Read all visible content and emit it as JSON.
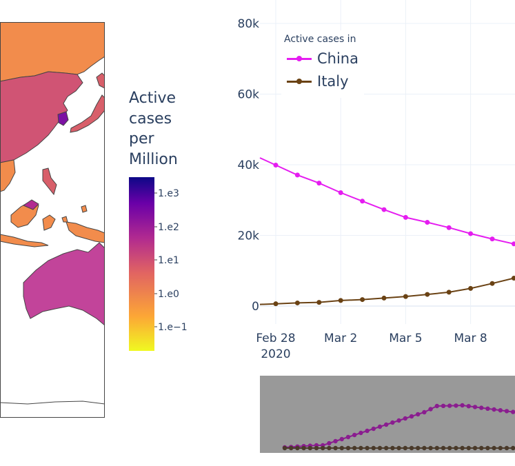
{
  "colors": {
    "china": "#e51df0",
    "italy": "#6a4214",
    "grid": "#ebf0f8",
    "text": "#2a3f5f",
    "map_background": "#ffffff",
    "slider_background": "#999999",
    "slider_china": "#8a1d8f",
    "slider_italy": "#4a3a2a"
  },
  "map": {
    "colorbar": {
      "title_lines": [
        "Active",
        "cases",
        "per",
        "Million"
      ],
      "tick_labels": [
        "1.e3",
        "1.e2",
        "1.e1",
        "1.e0",
        "1.e−1"
      ],
      "colorscale": [
        "#f0f921",
        "#fca636",
        "#e16462",
        "#b12a90",
        "#6a00a8",
        "#0d0887"
      ]
    }
  },
  "legend": {
    "title": "Active cases in",
    "items": [
      "China",
      "Italy"
    ]
  },
  "chart_data": {
    "type": "line",
    "x_tick_labels": [
      "Feb 28\n2020",
      "Mar 2",
      "Mar 5",
      "Mar 8"
    ],
    "y_tick_labels": [
      "0",
      "20k",
      "40k",
      "60k",
      "80k"
    ],
    "ylim": [
      -3000,
      81500
    ],
    "x": [
      "2020-02-28",
      "2020-02-29",
      "2020-03-01",
      "2020-03-02",
      "2020-03-03",
      "2020-03-04",
      "2020-03-05",
      "2020-03-06",
      "2020-03-07",
      "2020-03-08",
      "2020-03-09",
      "2020-03-10"
    ],
    "series": [
      {
        "name": "China",
        "values": [
          39900,
          37100,
          34800,
          32100,
          29700,
          27300,
          25100,
          23700,
          22200,
          20500,
          19000,
          17600
        ]
      },
      {
        "name": "Italy",
        "values": [
          650,
          890,
          1050,
          1580,
          1840,
          2260,
          2710,
          3300,
          3920,
          5000,
          6400,
          7900
        ]
      }
    ]
  }
}
